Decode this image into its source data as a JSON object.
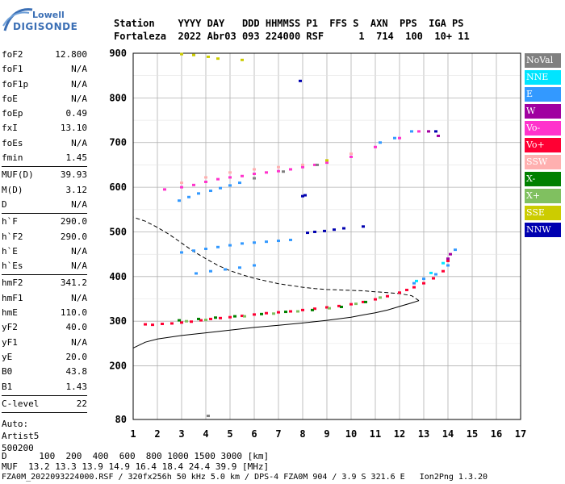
{
  "logo": {
    "line1": "Lowell",
    "line2": "DIGISONDE"
  },
  "header": {
    "line1": "Station    YYYY DAY   DDD HHMMSS P1  FFS S  AXN  PPS  IGA PS",
    "line2": "Fortaleza  2022 Abr03 093 224000 RSF      1  714  100  10+ 11"
  },
  "params": {
    "group1": [
      {
        "name": "foF2",
        "value": "12.800"
      },
      {
        "name": "foF1",
        "value": "N/A"
      },
      {
        "name": "foF1p",
        "value": "N/A"
      },
      {
        "name": "foE",
        "value": "N/A"
      },
      {
        "name": "foEp",
        "value": "0.49"
      },
      {
        "name": "fxI",
        "value": "13.10"
      },
      {
        "name": "foEs",
        "value": "N/A"
      },
      {
        "name": "fmin",
        "value": "1.45"
      }
    ],
    "group2": [
      {
        "name": "MUF(D)",
        "value": "39.93"
      },
      {
        "name": "M(D)",
        "value": "3.12"
      },
      {
        "name": "D",
        "value": "N/A"
      }
    ],
    "group3": [
      {
        "name": "h`F",
        "value": "290.0"
      },
      {
        "name": "h`F2",
        "value": "290.0"
      },
      {
        "name": "h`E",
        "value": "N/A"
      },
      {
        "name": "h`Es",
        "value": "N/A"
      }
    ],
    "group4": [
      {
        "name": "hmF2",
        "value": "341.2"
      },
      {
        "name": "hmF1",
        "value": "N/A"
      },
      {
        "name": "hmE",
        "value": "110.0"
      },
      {
        "name": "yF2",
        "value": "40.0"
      },
      {
        "name": "yF1",
        "value": "N/A"
      },
      {
        "name": "yE",
        "value": "20.0"
      },
      {
        "name": "B0",
        "value": "43.8"
      },
      {
        "name": "B1",
        "value": "1.43"
      }
    ],
    "group5": [
      {
        "name": "C-level",
        "value": "22"
      }
    ],
    "auto": [
      "Auto:",
      "Artist5",
      "500200"
    ]
  },
  "legend": [
    {
      "label": "NoVal",
      "color": "#808080"
    },
    {
      "label": "NNE",
      "color": "#00e5ff"
    },
    {
      "label": "E",
      "color": "#3399ff"
    },
    {
      "label": "W",
      "color": "#a000a0"
    },
    {
      "label": "Vo-",
      "color": "#ff33cc"
    },
    {
      "label": "Vo+",
      "color": "#ff0033"
    },
    {
      "label": "SSW",
      "color": "#ffb0b0"
    },
    {
      "label": "X-",
      "color": "#008000"
    },
    {
      "label": "X+",
      "color": "#80c060"
    },
    {
      "label": "SSE",
      "color": "#cccc00"
    },
    {
      "label": "NNW",
      "color": "#0000b0"
    }
  ],
  "footer": {
    "line1": "D      100  200  400  600  800 1000 1500 3000 [km]",
    "line2": "MUF  13.2 13.3 13.9 14.9 16.4 18.4 24.4 39.9 [MHz]",
    "line3": "FZA0M_2022093224000.RSF / 320fx256h 50 kHz 5.0 km / DPS-4 FZA0M 904 / 3.9 S 321.6 E   Ion2Png 1.3.20"
  },
  "chart_data": {
    "type": "scatter",
    "xlim": [
      1,
      17
    ],
    "ylim": [
      80,
      900
    ],
    "x_ticks": [
      1,
      2,
      3,
      4,
      5,
      6,
      7,
      8,
      9,
      10,
      11,
      12,
      13,
      14,
      15,
      16,
      17
    ],
    "y_ticks": [
      80,
      200,
      300,
      400,
      500,
      600,
      700,
      800,
      900
    ],
    "grid": true,
    "series": [
      {
        "name": "Vo+",
        "color": "#ff0033",
        "x": [
          1.5,
          1.8,
          2.2,
          2.6,
          3.0,
          3.4,
          3.8,
          4.2,
          4.6,
          5.0,
          5.5,
          6.0,
          6.5,
          7.0,
          7.5,
          8.0,
          8.5,
          9.0,
          9.5,
          10.0,
          10.5,
          11.0,
          11.5,
          12.0,
          12.3,
          12.6,
          13.0,
          13.4,
          13.8,
          14.0
        ],
        "y": [
          293,
          292,
          294,
          295,
          297,
          299,
          302,
          305,
          307,
          309,
          312,
          315,
          318,
          320,
          322,
          325,
          328,
          331,
          334,
          338,
          343,
          349,
          356,
          364,
          370,
          376,
          385,
          396,
          412,
          435
        ]
      },
      {
        "name": "X-",
        "color": "#008000",
        "x": [
          2.9,
          3.7,
          4.4,
          5.2,
          6.3,
          7.3,
          8.4,
          9.6,
          10.6
        ],
        "y": [
          302,
          305,
          308,
          311,
          316,
          321,
          325,
          332,
          343
        ]
      },
      {
        "name": "X+",
        "color": "#80c060",
        "x": [
          3.2,
          4.0,
          5.6,
          6.8,
          7.8,
          9.1,
          10.2,
          11.2
        ],
        "y": [
          300,
          303,
          311,
          317,
          322,
          329,
          339,
          353
        ]
      },
      {
        "name": "E",
        "color": "#3399ff",
        "x": [
          3.0,
          3.5,
          4.0,
          4.5,
          5.0,
          5.5,
          6.0,
          6.5,
          7.0,
          7.5,
          3.6,
          4.2,
          4.8,
          5.4,
          6.0,
          12.6,
          13.0,
          13.5,
          14.0,
          14.3,
          2.9,
          3.3,
          3.7,
          4.2,
          4.6,
          5.0,
          5.4,
          11.2,
          11.8,
          12.5
        ],
        "y": [
          454,
          458,
          462,
          466,
          470,
          474,
          476,
          478,
          480,
          482,
          407,
          412,
          416,
          420,
          425,
          385,
          395,
          405,
          425,
          460,
          570,
          578,
          586,
          592,
          598,
          604,
          610,
          700,
          710,
          725
        ]
      },
      {
        "name": "NNE",
        "color": "#00e5ff",
        "x": [
          12.7,
          13.3,
          13.8
        ],
        "y": [
          390,
          408,
          430
        ]
      },
      {
        "name": "W",
        "color": "#a000a0",
        "x": [
          14.0,
          14.1,
          13.6,
          13.2
        ],
        "y": [
          440,
          450,
          715,
          725
        ]
      },
      {
        "name": "Vo-",
        "color": "#ff33cc",
        "x": [
          2.3,
          3.0,
          3.5,
          4.0,
          4.5,
          5.0,
          5.5,
          6.0,
          6.5,
          7.0,
          7.5,
          8.0,
          8.5,
          9.0,
          10.0,
          11.0,
          12.0,
          12.8
        ],
        "y": [
          595,
          600,
          605,
          612,
          618,
          622,
          625,
          630,
          633,
          636,
          640,
          645,
          650,
          655,
          668,
          690,
          710,
          725
        ]
      },
      {
        "name": "SSW",
        "color": "#ffb0b0",
        "x": [
          3.0,
          4.0,
          5.0,
          6.0,
          7.0,
          8.0,
          9.0,
          10.0
        ],
        "y": [
          610,
          622,
          633,
          640,
          645,
          650,
          660,
          675
        ]
      },
      {
        "name": "SSE",
        "color": "#cccc00",
        "x": [
          3.0,
          3.5,
          4.1,
          4.5,
          5.5,
          9.0
        ],
        "y": [
          898,
          896,
          892,
          888,
          885,
          660
        ]
      },
      {
        "name": "NNW",
        "color": "#0000b0",
        "x": [
          7.9,
          8.0,
          8.1,
          8.2,
          8.5,
          8.9,
          9.3,
          9.7,
          10.5,
          13.5
        ],
        "y": [
          838,
          580,
          582,
          498,
          500,
          502,
          505,
          508,
          512,
          725
        ]
      },
      {
        "name": "NoVal",
        "color": "#808080",
        "x": [
          4.1,
          6.0,
          7.2,
          8.6
        ],
        "y": [
          88,
          620,
          635,
          650
        ]
      }
    ],
    "profile_solid": {
      "x": [
        1.0,
        1.5,
        2.0,
        3.0,
        4.0,
        5.0,
        6.0,
        7.0,
        8.0,
        9.0,
        10.0,
        10.5,
        11.0,
        11.5,
        12.0,
        12.5,
        12.8
      ],
      "y": [
        240,
        253,
        260,
        268,
        274,
        280,
        286,
        291,
        296,
        302,
        309,
        314,
        319,
        325,
        333,
        341,
        346
      ]
    },
    "profile_dashed": {
      "x": [
        12.8,
        12.5,
        12.0,
        11.5,
        11.0,
        10.5,
        10.0,
        9.5,
        9.0,
        8.5,
        8.0,
        7.5,
        7.0,
        6.5,
        6.0,
        5.5,
        5.0,
        4.5,
        4.0,
        3.5,
        3.0,
        2.5,
        2.0,
        1.5,
        1.0
      ],
      "y": [
        346,
        357,
        362,
        364,
        366,
        368,
        369,
        370,
        371,
        373,
        376,
        380,
        384,
        390,
        396,
        404,
        413,
        425,
        440,
        456,
        475,
        494,
        510,
        524,
        533
      ]
    }
  }
}
